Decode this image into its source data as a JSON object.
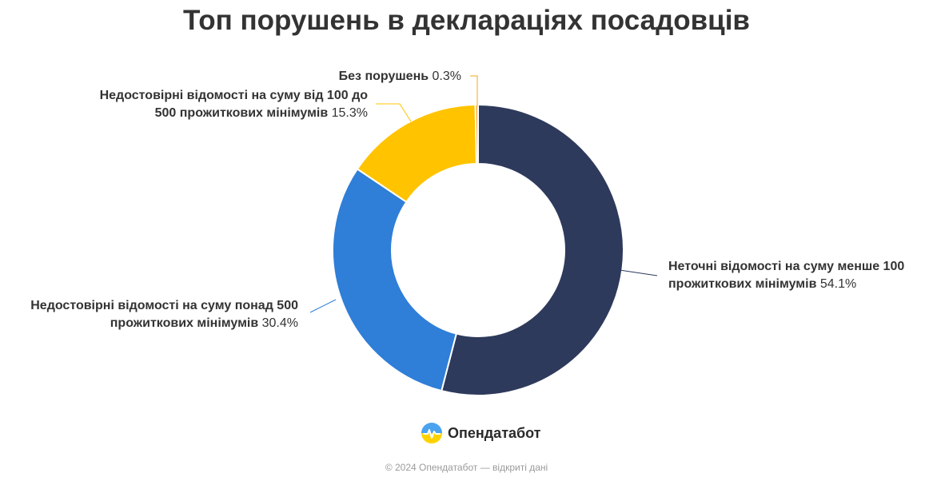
{
  "title": "Топ порушень в деклараціях посадовців",
  "chart_data": {
    "type": "pie",
    "donut": true,
    "title": "Топ порушень в деклараціях посадовців",
    "slices": [
      {
        "name": "Неточні відомості на суму менше 100 прожиткових мінімумів",
        "label_lines": [
          "Неточні відомості на суму менше 100",
          "прожиткових мінімумів"
        ],
        "value": 54.1,
        "pct_label": "54.1%",
        "color": "#2e3a5c"
      },
      {
        "name": "Недостовірні відомості на суму понад 500 прожиткових мінімумів",
        "label_lines": [
          "Недостовірні відомості на суму понад 500",
          "прожиткових мінімумів"
        ],
        "value": 30.4,
        "pct_label": "30.4%",
        "color": "#2f7ed8"
      },
      {
        "name": "Недостовірні відомості на суму від 100 до 500 прожиткових мінімумів",
        "label_lines": [
          "Недостовірні відомості на суму від 100 до",
          "500 прожиткових мінімумів"
        ],
        "value": 15.3,
        "pct_label": "15.3%",
        "color": "#ffc300"
      },
      {
        "name": "Без порушень",
        "label_lines": [
          "Без порушень"
        ],
        "value": 0.3,
        "pct_label": "0.3%",
        "color": "#f5a623"
      }
    ],
    "colors": {
      "label_text": "#333333",
      "slice_border": "#ffffff"
    }
  },
  "brand": {
    "name": "Опендатабот",
    "logo_icon": "opendatabot-logo-icon"
  },
  "footer": {
    "copyright": "© 2024 Опендатабот — відкриті дані"
  }
}
